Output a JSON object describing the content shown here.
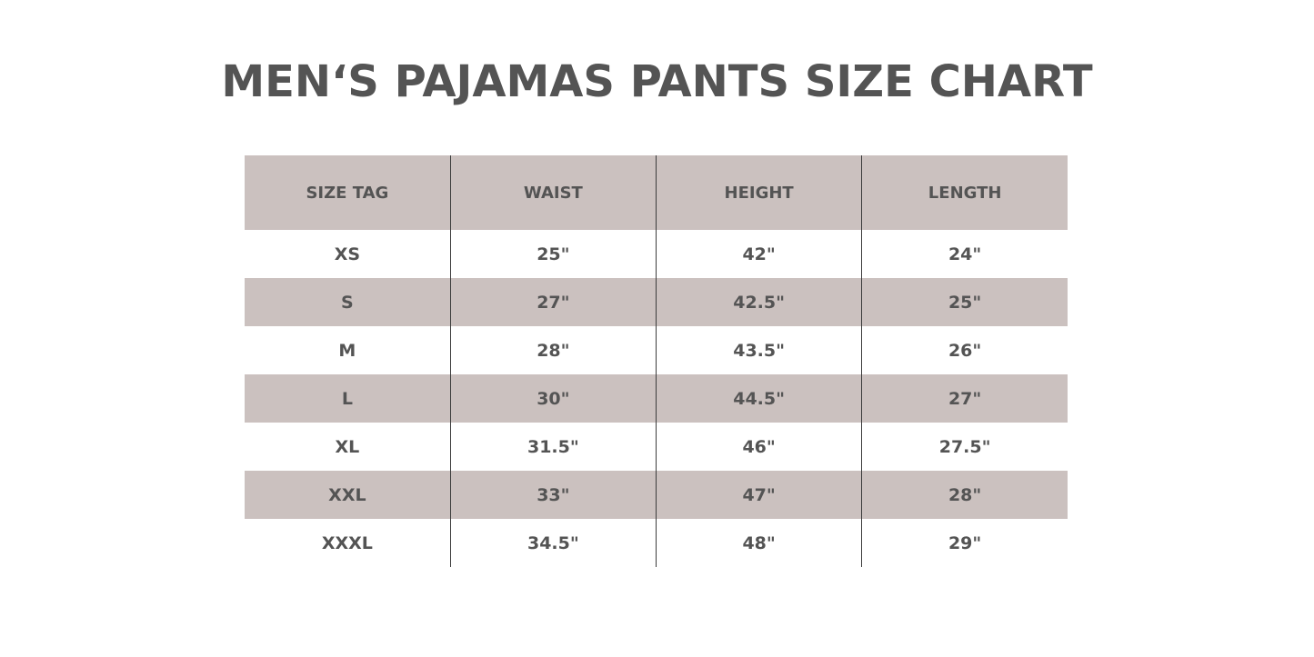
{
  "title": "MEN‘S PAJAMAS PANTS SIZE CHART",
  "table": {
    "headers": [
      "SIZE TAG",
      "WAIST",
      "HEIGHT",
      "LENGTH"
    ],
    "rows": [
      [
        "XS",
        "25\"",
        "42\"",
        "24\""
      ],
      [
        "S",
        "27\"",
        "42.5\"",
        "25\""
      ],
      [
        "M",
        "28\"",
        "43.5\"",
        "26\""
      ],
      [
        "L",
        "30\"",
        "44.5\"",
        "27\""
      ],
      [
        "XL",
        "31.5\"",
        "46\"",
        "27.5\""
      ],
      [
        "XXL",
        "33\"",
        "47\"",
        "28\""
      ],
      [
        "XXXL",
        "34.5\"",
        "48\"",
        "29\""
      ]
    ]
  },
  "colors": {
    "header_bg": "#cbc1bf",
    "text": "#545454",
    "divider": "#3c3c3c"
  }
}
